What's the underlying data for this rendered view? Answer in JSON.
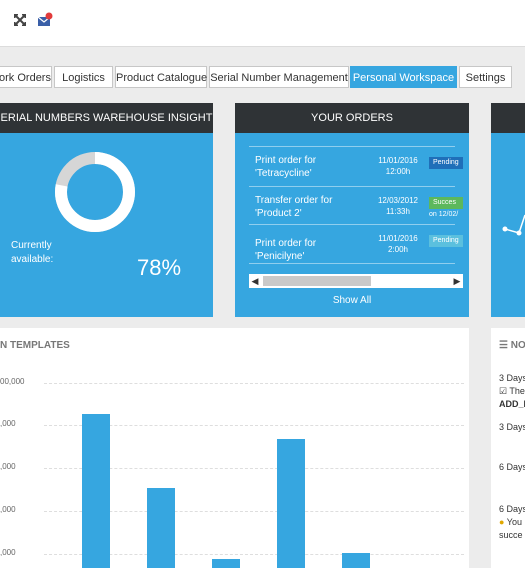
{
  "toolbar": {
    "expand_icon": "expand-arrows-icon",
    "mail_icon": "envelope-alert-icon"
  },
  "tabs": [
    {
      "label": "ork Orders",
      "active": false
    },
    {
      "label": "Logistics",
      "active": false
    },
    {
      "label": "Product Catalogue",
      "active": false
    },
    {
      "label": "Serial Number Management",
      "active": false
    },
    {
      "label": "Personal Workspace",
      "active": true
    },
    {
      "label": "Settings",
      "active": false
    }
  ],
  "insight": {
    "title": "ERIAL NUMBERS WAREHOUSE INSIGHT",
    "label_line1": "Currently",
    "label_line2": "available:",
    "percent_text": "78%",
    "fraction": 0.78
  },
  "orders": {
    "title": "YOUR ORDERS",
    "items": [
      {
        "title": "Print order for 'Tetracycline'",
        "date": "11/01/2016",
        "time": "12:00h",
        "status": "Pending",
        "status_color": "#1f6fb9",
        "note": ""
      },
      {
        "title": "Transfer order for 'Product 2'",
        "date": "12/03/2012",
        "time": "11:33h",
        "status": "Succes",
        "status_color": "#5cb85c",
        "note": "on 12/02/"
      },
      {
        "title": "Print order for 'Penicilyne'",
        "date": "11/01/2016",
        "time": "2:00h",
        "status": "Pending",
        "status_color": "#5bc0de",
        "note": ""
      }
    ],
    "show_all": "Show All"
  },
  "templates_card": {
    "title": "N TEMPLATES",
    "y_labels": [
      "00,000",
      ",000",
      ",000",
      ",000",
      ",000"
    ]
  },
  "chart_data": {
    "type": "bar",
    "values": [
      100,
      52,
      6,
      84,
      10
    ],
    "ylim": [
      0,
      100
    ],
    "grid": true,
    "bar_color": "#36a6e0"
  },
  "notifications": {
    "title": "NO",
    "entries": [
      {
        "line1": "3 Days",
        "line2": "The",
        "line3": "ADD_I"
      },
      {
        "line1": "3 Days"
      },
      {
        "line1": "6 Days"
      },
      {
        "line1": "6 Days",
        "line2": "You",
        "line3": "succe"
      }
    ]
  }
}
